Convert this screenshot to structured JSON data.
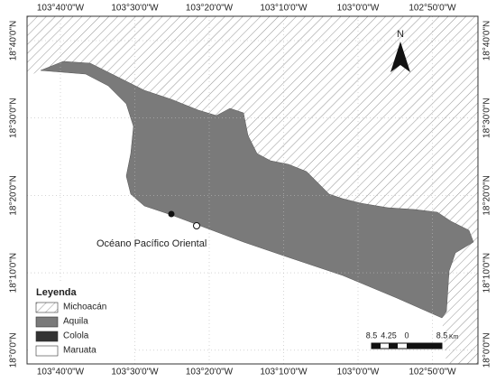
{
  "map": {
    "longitude_labels": [
      "103°40'0\"W",
      "103°30'0\"W",
      "103°20'0\"W",
      "103°10'0\"W",
      "103°0'0\"W",
      "102°50'0\"W"
    ],
    "latitude_labels": [
      "18°40'0\"N",
      "18°30'0\"N",
      "18°20'0\"N",
      "18°10'0\"N",
      "18°0'0\"N"
    ],
    "north_label": "N",
    "ocean_label": "Océano Pacífico Oriental",
    "legend": {
      "title": "Leyenda",
      "items": [
        "Michoacán",
        "Aquila",
        "Colola",
        "Maruata"
      ]
    },
    "scale_bar": {
      "labels": [
        "8.5",
        "4.25",
        "0",
        "8.5"
      ],
      "unit": "Km"
    }
  }
}
